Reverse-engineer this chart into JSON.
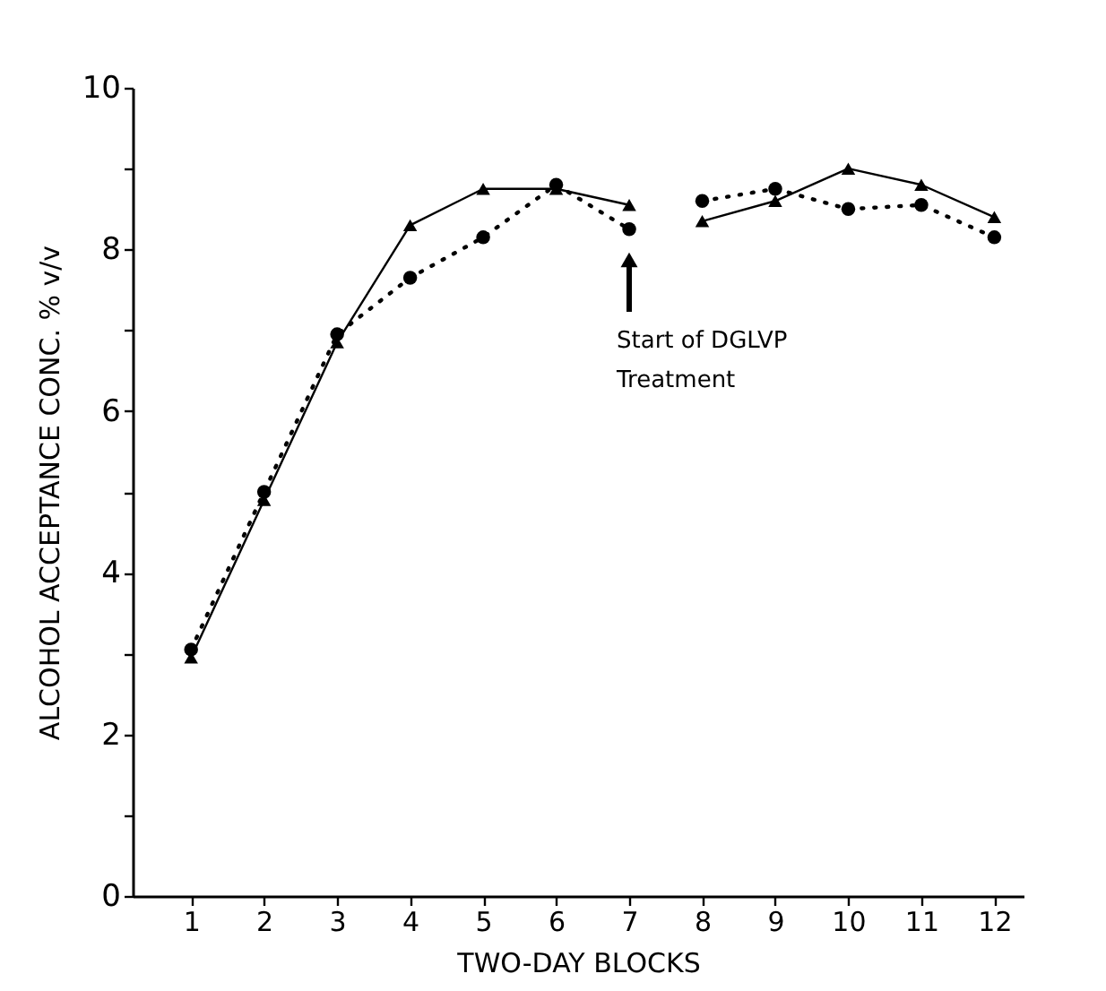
{
  "chart_data": {
    "type": "line",
    "xlabel": "TWO-DAY BLOCKS",
    "ylabel": "ALCOHOL ACCEPTANCE CONC. % v/v",
    "xlim": [
      0.2,
      12.4
    ],
    "xticks": [
      1,
      2,
      3,
      4,
      5,
      6,
      7,
      8,
      9,
      10,
      11,
      12
    ],
    "ylim": [
      0,
      10
    ],
    "yticks": [
      0,
      {
        "value": 1,
        "label": null
      },
      2,
      {
        "value": 3,
        "label": null
      },
      4,
      {
        "value": 5,
        "label": null
      },
      6,
      {
        "value": 7,
        "label": null
      },
      8,
      {
        "value": 9,
        "label": null
      },
      10
    ],
    "series": [
      {
        "color": "#000000",
        "marker": "triangle",
        "line_style": "solid",
        "x": [
          1,
          2,
          3,
          4,
          5,
          6,
          7
        ],
        "values": [
          2.95,
          4.9,
          6.85,
          8.3,
          8.75,
          8.75,
          8.55
        ]
      },
      {
        "color": "#000000",
        "marker": "circle",
        "line_style": "dotted",
        "x": [
          1,
          2,
          3,
          4,
          5,
          6,
          7
        ],
        "values": [
          3.05,
          5.0,
          6.95,
          7.65,
          8.15,
          8.8,
          8.25
        ]
      },
      {
        "color": "#000000",
        "marker": "triangle",
        "line_style": "solid",
        "x": [
          8,
          9,
          10,
          11,
          12
        ],
        "values": [
          8.35,
          8.6,
          9.0,
          8.8,
          8.4
        ]
      },
      {
        "color": "#000000",
        "marker": "circle",
        "line_style": "dotted",
        "x": [
          8,
          9,
          10,
          11,
          12
        ],
        "values": [
          8.6,
          8.75,
          8.5,
          8.55,
          8.15
        ]
      }
    ],
    "grid": false,
    "annotations": [
      "Start of DGLVP\nTreatment"
    ]
  }
}
